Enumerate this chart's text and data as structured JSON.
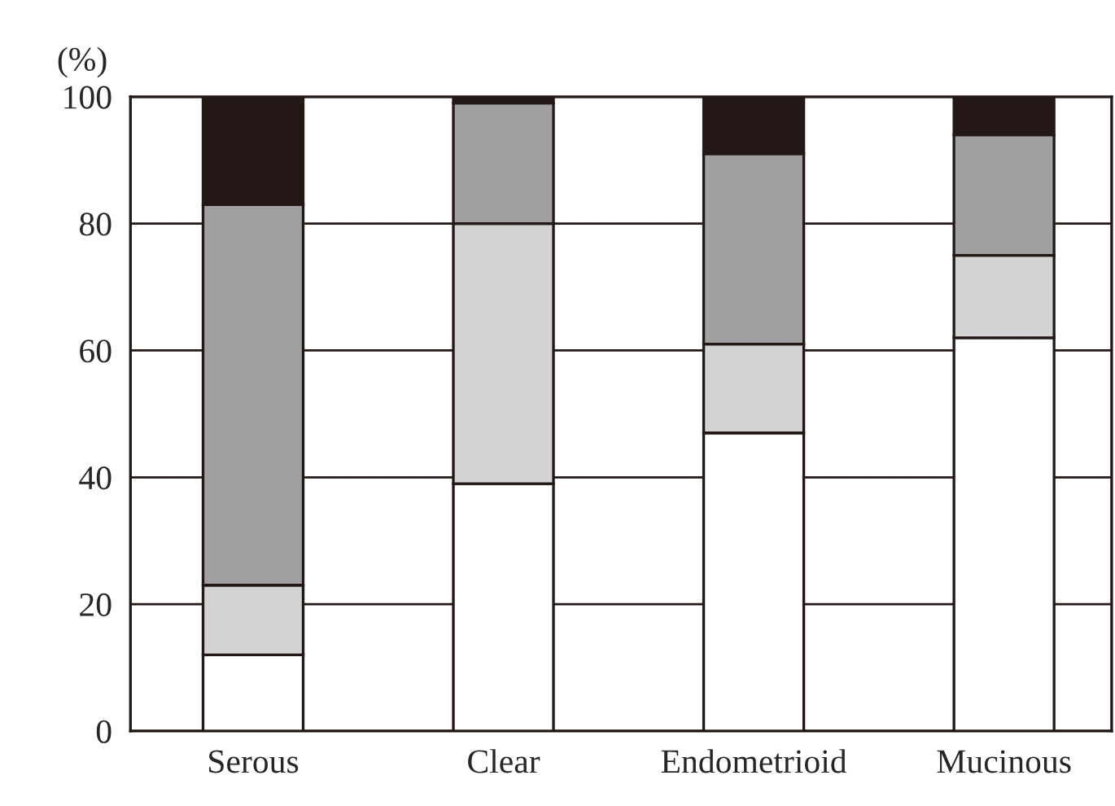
{
  "chart_data": {
    "type": "bar",
    "stacked": true,
    "ylabel": "(%)",
    "categories": [
      "Serous",
      "Clear",
      "Endometrioid",
      "Mucinous"
    ],
    "series": [
      {
        "color": "#ffffff",
        "values": [
          12,
          39,
          47,
          62
        ]
      },
      {
        "color": "#d3d3d3",
        "values": [
          11,
          41,
          14,
          13
        ]
      },
      {
        "color": "#a0a0a0",
        "values": [
          60,
          19,
          30,
          19
        ]
      },
      {
        "color": "#231815",
        "values": [
          17,
          1,
          9,
          6
        ]
      }
    ],
    "ylim": [
      0,
      100
    ],
    "yticks": [
      0,
      20,
      40,
      60,
      80,
      100
    ],
    "grid": "y",
    "legend": false
  }
}
